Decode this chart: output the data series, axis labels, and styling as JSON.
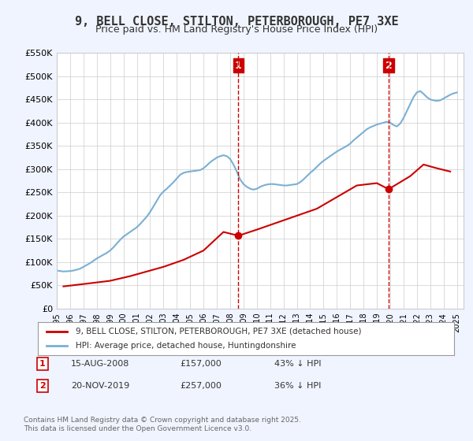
{
  "title": "9, BELL CLOSE, STILTON, PETERBOROUGH, PE7 3XE",
  "subtitle": "Price paid vs. HM Land Registry's House Price Index (HPI)",
  "legend_line1": "9, BELL CLOSE, STILTON, PETERBOROUGH, PE7 3XE (detached house)",
  "legend_line2": "HPI: Average price, detached house, Huntingdonshire",
  "annotation1_label": "1",
  "annotation1_date": "15-AUG-2008",
  "annotation1_price": "£157,000",
  "annotation1_pct": "43% ↓ HPI",
  "annotation2_label": "2",
  "annotation2_date": "20-NOV-2019",
  "annotation2_price": "£257,000",
  "annotation2_pct": "36% ↓ HPI",
  "footer": "Contains HM Land Registry data © Crown copyright and database right 2025.\nThis data is licensed under the Open Government Licence v3.0.",
  "bg_color": "#f0f4ff",
  "plot_bg_color": "#ffffff",
  "red_color": "#cc0000",
  "blue_color": "#7ab0d4",
  "vline_color": "#cc0000",
  "marker_color": "#cc0000",
  "ylim": [
    0,
    550000
  ],
  "xlim_start": 1995.0,
  "xlim_end": 2025.5,
  "point1_x": 2008.62,
  "point1_y": 157000,
  "point1_hpi_y": 275000,
  "point2_x": 2019.88,
  "point2_y": 257000,
  "point2_hpi_y": 402000,
  "hpi_data_x": [
    1995.0,
    1995.25,
    1995.5,
    1995.75,
    1996.0,
    1996.25,
    1996.5,
    1996.75,
    1997.0,
    1997.25,
    1997.5,
    1997.75,
    1998.0,
    1998.25,
    1998.5,
    1998.75,
    1999.0,
    1999.25,
    1999.5,
    1999.75,
    2000.0,
    2000.25,
    2000.5,
    2000.75,
    2001.0,
    2001.25,
    2001.5,
    2001.75,
    2002.0,
    2002.25,
    2002.5,
    2002.75,
    2003.0,
    2003.25,
    2003.5,
    2003.75,
    2004.0,
    2004.25,
    2004.5,
    2004.75,
    2005.0,
    2005.25,
    2005.5,
    2005.75,
    2006.0,
    2006.25,
    2006.5,
    2006.75,
    2007.0,
    2007.25,
    2007.5,
    2007.75,
    2008.0,
    2008.25,
    2008.5,
    2008.75,
    2009.0,
    2009.25,
    2009.5,
    2009.75,
    2010.0,
    2010.25,
    2010.5,
    2010.75,
    2011.0,
    2011.25,
    2011.5,
    2011.75,
    2012.0,
    2012.25,
    2012.5,
    2012.75,
    2013.0,
    2013.25,
    2013.5,
    2013.75,
    2014.0,
    2014.25,
    2014.5,
    2014.75,
    2015.0,
    2015.25,
    2015.5,
    2015.75,
    2016.0,
    2016.25,
    2016.5,
    2016.75,
    2017.0,
    2017.25,
    2017.5,
    2017.75,
    2018.0,
    2018.25,
    2018.5,
    2018.75,
    2019.0,
    2019.25,
    2019.5,
    2019.75,
    2020.0,
    2020.25,
    2020.5,
    2020.75,
    2021.0,
    2021.25,
    2021.5,
    2021.75,
    2022.0,
    2022.25,
    2022.5,
    2022.75,
    2023.0,
    2023.25,
    2023.5,
    2023.75,
    2024.0,
    2024.25,
    2024.5,
    2024.75,
    2025.0
  ],
  "hpi_data_y": [
    82000,
    81000,
    80000,
    80500,
    81000,
    82000,
    84000,
    86000,
    90000,
    94000,
    98000,
    103000,
    108000,
    112000,
    116000,
    120000,
    125000,
    132000,
    140000,
    148000,
    155000,
    160000,
    165000,
    170000,
    175000,
    182000,
    190000,
    198000,
    208000,
    220000,
    232000,
    244000,
    252000,
    258000,
    265000,
    272000,
    280000,
    288000,
    292000,
    294000,
    295000,
    296000,
    297000,
    298000,
    302000,
    308000,
    315000,
    320000,
    325000,
    328000,
    330000,
    328000,
    322000,
    310000,
    295000,
    278000,
    268000,
    262000,
    258000,
    256000,
    258000,
    262000,
    265000,
    267000,
    268000,
    268000,
    267000,
    266000,
    265000,
    265000,
    266000,
    267000,
    268000,
    272000,
    278000,
    285000,
    292000,
    298000,
    305000,
    312000,
    318000,
    323000,
    328000,
    333000,
    338000,
    342000,
    346000,
    350000,
    355000,
    362000,
    368000,
    374000,
    380000,
    386000,
    390000,
    393000,
    396000,
    398000,
    400000,
    402000,
    400000,
    395000,
    392000,
    398000,
    410000,
    425000,
    440000,
    455000,
    465000,
    468000,
    462000,
    455000,
    450000,
    448000,
    447000,
    448000,
    452000,
    456000,
    460000,
    463000,
    465000
  ],
  "price_data_x": [
    1995.5,
    1997.0,
    1999.0,
    2000.5,
    2001.5,
    2003.0,
    2004.5,
    2006.0,
    2007.5,
    2008.62,
    2010.0,
    2011.5,
    2013.0,
    2014.5,
    2016.0,
    2017.5,
    2019.0,
    2019.88,
    2021.5,
    2022.5,
    2023.5,
    2024.5
  ],
  "price_data_y": [
    48000,
    53000,
    60000,
    70000,
    78000,
    90000,
    105000,
    125000,
    165000,
    157000,
    170000,
    185000,
    200000,
    215000,
    240000,
    265000,
    270000,
    257000,
    285000,
    310000,
    302000,
    295000
  ]
}
